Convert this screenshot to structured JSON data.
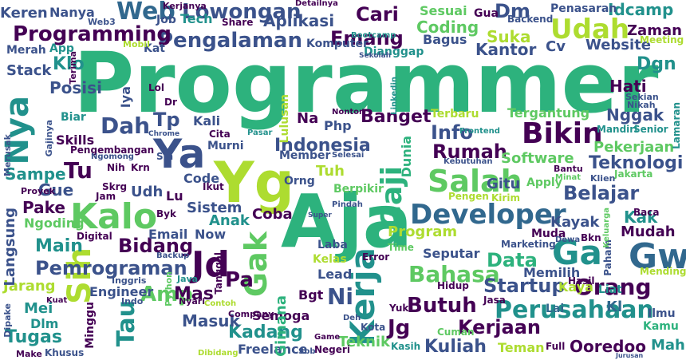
{
  "palette": {
    "dark_purple": "#440154",
    "indigo": "#3b528b",
    "slate_blue": "#31688e",
    "teal": "#21918c",
    "green": "#2db27d",
    "light_green": "#5ec962",
    "lime": "#addc30",
    "yellow": "#d8e219"
  },
  "words": [
    {
      "text": "Programmer",
      "c": "green"
    },
    {
      "text": "Aja",
      "c": "green"
    },
    {
      "text": "Yg",
      "c": "lime"
    },
    {
      "text": "Ya",
      "c": "indigo"
    },
    {
      "text": "Kalo",
      "c": "light_green"
    },
    {
      "text": "Kerja",
      "c": "teal"
    },
    {
      "text": "Gak",
      "c": "light_green"
    },
    {
      "text": "Gw",
      "c": "slate_blue"
    },
    {
      "text": "Ga",
      "c": "teal"
    },
    {
      "text": "Jd",
      "c": "dark_purple"
    },
    {
      "text": "Sih",
      "c": "lime"
    },
    {
      "text": "Developer",
      "c": "slate_blue"
    },
    {
      "text": "Salah",
      "c": "light_green"
    },
    {
      "text": "Bikin",
      "c": "dark_purple"
    },
    {
      "text": "Gaji",
      "c": "green"
    },
    {
      "text": "Nya",
      "c": "teal"
    },
    {
      "text": "Web",
      "c": "slate_blue"
    },
    {
      "text": "Lowongan",
      "c": "indigo"
    },
    {
      "text": "Pengalaman",
      "c": "indigo"
    },
    {
      "text": "Emang",
      "c": "dark_purple"
    },
    {
      "text": "Udah",
      "c": "lime"
    },
    {
      "text": "Programming",
      "c": "dark_purple"
    },
    {
      "text": "Website",
      "c": "indigo"
    },
    {
      "text": "Orang",
      "c": "dark_purple"
    },
    {
      "text": "Perusahaan",
      "c": "teal"
    },
    {
      "text": "Pemrograman",
      "c": "indigo"
    },
    {
      "text": "Bidang",
      "c": "dark_purple"
    },
    {
      "text": "Bahasa",
      "c": "light_green"
    },
    {
      "text": "Startup",
      "c": "indigo"
    },
    {
      "text": "Data",
      "c": "green"
    },
    {
      "text": "Butuh",
      "c": "dark_purple"
    },
    {
      "text": "Kuliah",
      "c": "indigo"
    },
    {
      "text": "Kerjaan",
      "c": "dark_purple"
    },
    {
      "text": "Kadang",
      "c": "teal"
    },
    {
      "text": "Masuk",
      "c": "indigo"
    },
    {
      "text": "Tugas",
      "c": "teal"
    },
    {
      "text": "Teknologi",
      "c": "indigo"
    },
    {
      "text": "Belajar",
      "c": "indigo"
    },
    {
      "text": "Rumah",
      "c": "dark_purple"
    },
    {
      "text": "Info",
      "c": "indigo"
    },
    {
      "text": "Banget",
      "c": "dark_purple"
    },
    {
      "text": "Dah",
      "c": "indigo"
    },
    {
      "text": "Tp",
      "c": "indigo"
    },
    {
      "text": "Amp",
      "c": "light_green"
    },
    {
      "text": "Tau",
      "c": "teal"
    },
    {
      "text": "Pa",
      "c": "dark_purple"
    },
    {
      "text": "Ni",
      "c": "indigo"
    },
    {
      "text": "Mas",
      "c": "dark_purple"
    },
    {
      "text": "Jg",
      "c": "dark_purple"
    },
    {
      "text": "Tu",
      "c": "dark_purple"
    },
    {
      "text": "Kak",
      "c": "teal"
    },
    {
      "text": "Mudah",
      "c": "dark_purple"
    },
    {
      "text": "Kayak",
      "c": "indigo"
    },
    {
      "text": "Kantor",
      "c": "indigo"
    },
    {
      "text": "Suka",
      "c": "lime"
    },
    {
      "text": "Coding",
      "c": "light_green"
    },
    {
      "text": "Cari",
      "c": "dark_purple"
    },
    {
      "text": "Dm",
      "c": "indigo"
    },
    {
      "text": "Idcamp",
      "c": "teal"
    },
    {
      "text": "Zaman",
      "c": "dark_purple"
    },
    {
      "text": "Aplikasi",
      "c": "indigo"
    },
    {
      "text": "Stack",
      "c": "indigo"
    },
    {
      "text": "Posisi",
      "c": "indigo"
    },
    {
      "text": "Klo",
      "c": "teal"
    },
    {
      "text": "Keren",
      "c": "indigo"
    },
    {
      "text": "Nanya",
      "c": "indigo"
    },
    {
      "text": "Indonesia",
      "c": "indigo"
    },
    {
      "text": "Software",
      "c": "light_green"
    },
    {
      "text": "Pekerjaan",
      "c": "light_green"
    },
    {
      "text": "Nggak",
      "c": "indigo"
    },
    {
      "text": "Hati",
      "c": "dark_purple"
    },
    {
      "text": "Dgn",
      "c": "teal"
    },
    {
      "text": "Sampe",
      "c": "teal"
    },
    {
      "text": "Skills",
      "c": "dark_purple"
    },
    {
      "text": "Pake",
      "c": "dark_purple"
    },
    {
      "text": "Gue",
      "c": "indigo"
    },
    {
      "text": "Main",
      "c": "teal"
    },
    {
      "text": "Jarang",
      "c": "lime"
    },
    {
      "text": "Langsung",
      "c": "indigo"
    },
    {
      "text": "Ngoding",
      "c": "light_green"
    },
    {
      "text": "Mei",
      "c": "teal"
    },
    {
      "text": "Dlm",
      "c": "teal"
    },
    {
      "text": "Engineer",
      "c": "indigo"
    },
    {
      "text": "Minggu",
      "c": "dark_purple"
    },
    {
      "text": "Freelance",
      "c": "indigo"
    },
    {
      "text": "Semoga",
      "c": "dark_purple"
    },
    {
      "text": "Bgt",
      "c": "dark_purple"
    },
    {
      "text": "Email",
      "c": "indigo"
    },
    {
      "text": "Sistem",
      "c": "indigo"
    },
    {
      "text": "Code",
      "c": "indigo"
    },
    {
      "text": "Anak",
      "c": "teal"
    },
    {
      "text": "Coba",
      "c": "dark_purple"
    },
    {
      "text": "Program",
      "c": "lime"
    },
    {
      "text": "Seputar",
      "c": "indigo"
    },
    {
      "text": "Gitu",
      "c": "indigo"
    },
    {
      "text": "Lu",
      "c": "dark_purple"
    },
    {
      "text": "Kali",
      "c": "indigo"
    },
    {
      "text": "Murni",
      "c": "indigo"
    },
    {
      "text": "Udh",
      "c": "indigo"
    },
    {
      "text": "Teman",
      "c": "lime"
    },
    {
      "text": "Ooredoo",
      "c": "dark_purple"
    },
    {
      "text": "Teknik",
      "c": "light_green"
    },
    {
      "text": "Khusus",
      "c": "indigo"
    },
    {
      "text": "Make",
      "c": "dark_purple"
    },
    {
      "text": "Mah",
      "c": "teal"
    },
    {
      "text": "Kl",
      "c": "slate_blue"
    },
    {
      "text": "Lol",
      "c": "dark_purple"
    },
    {
      "text": "Ikut",
      "c": "dark_purple"
    },
    {
      "text": "Kamu",
      "c": "green"
    },
    {
      "text": "Gimana",
      "c": "green"
    },
    {
      "text": "Dunia",
      "c": "green"
    },
    {
      "text": "Lead",
      "c": "indigo"
    },
    {
      "text": "Kelas",
      "c": "lime"
    },
    {
      "text": "Error",
      "c": "dark_purple"
    },
    {
      "text": "Now",
      "c": "indigo"
    },
    {
      "text": "Digital",
      "c": "dark_purple"
    },
    {
      "text": "Muda",
      "c": "dark_purple"
    },
    {
      "text": "Memilih",
      "c": "indigo"
    },
    {
      "text": "Hasil",
      "c": "dark_purple"
    },
    {
      "text": "Bagus",
      "c": "indigo"
    },
    {
      "text": "Cv",
      "c": "indigo"
    },
    {
      "text": "Member",
      "c": "indigo"
    },
    {
      "text": "Terbaru",
      "c": "lime"
    },
    {
      "text": "Tergantung",
      "c": "light_green"
    },
    {
      "text": "Tuh",
      "c": "lime"
    },
    {
      "text": "Berpikir",
      "c": "light_green"
    },
    {
      "text": "Apply",
      "c": "light_green"
    },
    {
      "text": "Baca",
      "c": "dark_purple"
    },
    {
      "text": "Php",
      "c": "indigo"
    },
    {
      "text": "Sesuai",
      "c": "light_green"
    },
    {
      "text": "Gua",
      "c": "dark_purple"
    },
    {
      "text": "Komputer",
      "c": "indigo"
    },
    {
      "text": "Penasaran",
      "c": "indigo"
    },
    {
      "text": "Backend",
      "c": "indigo"
    },
    {
      "text": "Tech",
      "c": "teal"
    },
    {
      "text": "Merah",
      "c": "indigo"
    },
    {
      "text": "Biar",
      "c": "teal"
    },
    {
      "text": "App",
      "c": "teal"
    },
    {
      "text": "Pengembangan",
      "c": "dark_purple"
    },
    {
      "text": "Sm",
      "c": "indigo"
    },
    {
      "text": "Kirim",
      "c": "lime"
    },
    {
      "text": "Orng",
      "c": "indigo"
    },
    {
      "text": "Na",
      "c": "dark_purple"
    },
    {
      "text": "Pengen",
      "c": "lime"
    },
    {
      "text": "Marketing",
      "c": "indigo"
    },
    {
      "text": "Paham",
      "c": "indigo"
    },
    {
      "text": "Liat",
      "c": "teal"
    },
    {
      "text": "Dr",
      "c": "dark_purple"
    },
    {
      "text": "Cita",
      "c": "dark_purple"
    },
    {
      "text": "Iya",
      "c": "indigo"
    },
    {
      "text": "Kaya",
      "c": "lime"
    },
    {
      "text": "Lai",
      "c": "slate_blue"
    },
    {
      "text": "Yuk",
      "c": "dark_purple"
    },
    {
      "text": "Jasa",
      "c": "dark_purple"
    },
    {
      "text": "Share",
      "c": "dark_purple"
    },
    {
      "text": "Dianggap",
      "c": "teal"
    },
    {
      "text": "Meeting",
      "c": "lime"
    },
    {
      "text": "Mending",
      "c": "lime"
    },
    {
      "text": "Jakarta",
      "c": "light_green"
    },
    {
      "text": "Kota",
      "c": "indigo"
    },
    {
      "text": "Kasih",
      "c": "teal"
    },
    {
      "text": "Cuman",
      "c": "light_green"
    },
    {
      "text": "Full",
      "c": "dark_purple"
    },
    {
      "text": "Negeri",
      "c": "dark_purple"
    },
    {
      "text": "Ilmu",
      "c": "indigo"
    },
    {
      "text": "Sbb",
      "c": "indigo"
    },
    {
      "text": "Deh",
      "c": "indigo"
    },
    {
      "text": "Pasar",
      "c": "teal"
    },
    {
      "text": "Jam",
      "c": "dark_purple"
    },
    {
      "text": "Web3",
      "c": "indigo"
    },
    {
      "text": "Hidup",
      "c": "dark_purple"
    },
    {
      "text": "Skrg",
      "c": "dark_purple"
    },
    {
      "text": "Byk",
      "c": "dark_purple"
    },
    {
      "text": "Nih",
      "c": "dark_purple"
    },
    {
      "text": "Krn",
      "c": "dark_purple"
    },
    {
      "text": "Tanggal",
      "c": "dark_purple"
    },
    {
      "text": "Company",
      "c": "dark_purple"
    },
    {
      "text": "Contoh",
      "c": "lime"
    },
    {
      "text": "Nyari",
      "c": "dark_purple"
    },
    {
      "text": "Java",
      "c": "teal"
    },
    {
      "text": "Python",
      "c": "light_green"
    },
    {
      "text": "Inggris",
      "c": "indigo"
    },
    {
      "text": "Indo",
      "c": "indigo"
    },
    {
      "text": "Job",
      "c": "indigo"
    },
    {
      "text": "Kat",
      "c": "indigo"
    },
    {
      "text": "Frontend",
      "c": "teal"
    },
    {
      "text": "Lulusan",
      "c": "lime"
    },
    {
      "text": "Laba",
      "c": "indigo"
    },
    {
      "text": "Time",
      "c": "light_green"
    },
    {
      "text": "Selesai",
      "c": "indigo"
    },
    {
      "text": "Senior",
      "c": "teal"
    },
    {
      "text": "Mandiri",
      "c": "teal"
    },
    {
      "text": "Dewa",
      "c": "indigo"
    },
    {
      "text": "Bkn",
      "c": "dark_purple"
    },
    {
      "text": "Mobil",
      "c": "lime"
    },
    {
      "text": "Linkedin",
      "c": "teal"
    },
    {
      "text": "Detailnya",
      "c": "dark_purple"
    },
    {
      "text": "Merusak",
      "c": "indigo"
    },
    {
      "text": "Gajinya",
      "c": "indigo"
    },
    {
      "text": "Nonton",
      "c": "dark_purple"
    },
    {
      "text": "Ngomong",
      "c": "indigo"
    },
    {
      "text": "Proyek",
      "c": "dark_purple"
    },
    {
      "text": "Kerjanya",
      "c": "dark_purple"
    },
    {
      "text": "Klien",
      "c": "indigo"
    },
    {
      "text": "Bantu",
      "c": "dark_purple"
    },
    {
      "text": "Minat",
      "c": "light_green"
    },
    {
      "text": "Kebutuhan",
      "c": "indigo"
    },
    {
      "text": "Keluarga",
      "c": "light_green"
    },
    {
      "text": "Lamaran",
      "c": "teal"
    },
    {
      "text": "Dipake",
      "c": "indigo"
    },
    {
      "text": "Kuat",
      "c": "dark_purple"
    },
    {
      "text": "Game",
      "c": "dark_purple"
    },
    {
      "text": "Backup",
      "c": "indigo"
    },
    {
      "text": "Terima",
      "c": "dark_purple"
    },
    {
      "text": "Sekian",
      "c": "indigo"
    },
    {
      "text": "Nikah",
      "c": "indigo"
    },
    {
      "text": "Bootcamp",
      "c": "teal"
    },
    {
      "text": "Jurusan",
      "c": "indigo"
    },
    {
      "text": "Pindah",
      "c": "indigo"
    },
    {
      "text": "Sekolah",
      "c": "indigo"
    },
    {
      "text": "Dibidang",
      "c": "lime"
    },
    {
      "text": "Super",
      "c": "indigo"
    },
    {
      "text": "Chrome",
      "c": "indigo"
    }
  ]
}
